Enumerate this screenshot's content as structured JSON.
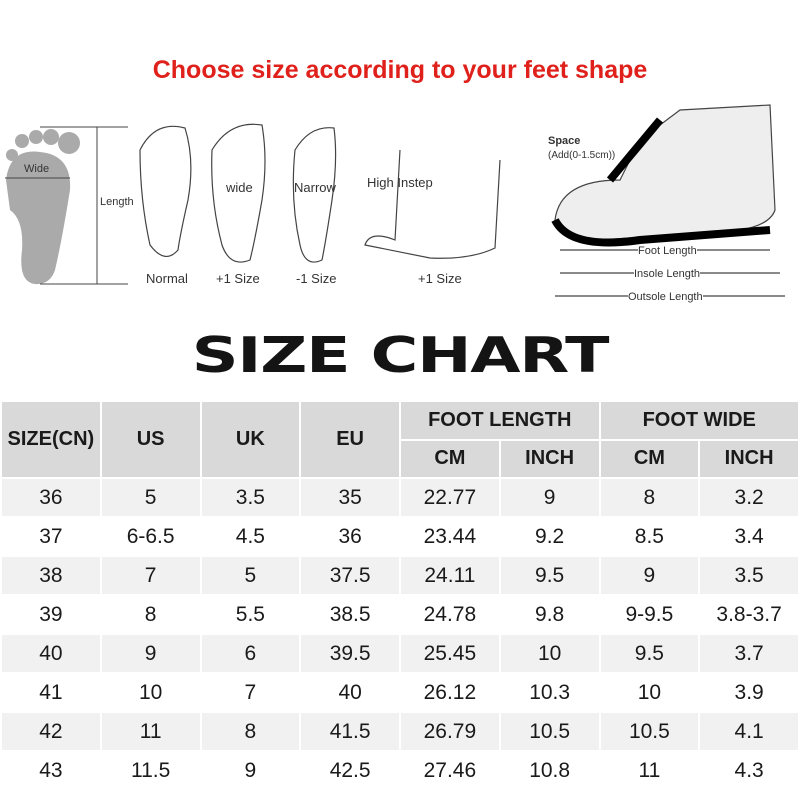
{
  "title": "Choose size according to your feet shape",
  "illustration": {
    "foot_labels": {
      "wide": "Wide",
      "length": "Length"
    },
    "types": [
      {
        "label": "Normal"
      },
      {
        "label": "+1 Size",
        "note": "wide"
      },
      {
        "label": "-1 Size",
        "note": "Narrow"
      },
      {
        "label": "+1 Size",
        "note": "High Instep"
      }
    ],
    "shoe": {
      "space": "Space",
      "space_note": "(Add(0-1.5cm))",
      "foot_length": "Foot Length",
      "insole_length": "Insole Length",
      "outsole_length": "Outsole Length"
    }
  },
  "banner": "SIZE CHART",
  "table": {
    "headers": {
      "size_cn": "SIZE(CN)",
      "us": "US",
      "uk": "UK",
      "eu": "EU",
      "foot_length": "FOOT LENGTH",
      "foot_wide": "FOOT WIDE",
      "cm": "CM",
      "inch": "INCH"
    },
    "rows": [
      [
        "36",
        "5",
        "3.5",
        "35",
        "22.77",
        "9",
        "8",
        "3.2"
      ],
      [
        "37",
        "6-6.5",
        "4.5",
        "36",
        "23.44",
        "9.2",
        "8.5",
        "3.4"
      ],
      [
        "38",
        "7",
        "5",
        "37.5",
        "24.11",
        "9.5",
        "9",
        "3.5"
      ],
      [
        "39",
        "8",
        "5.5",
        "38.5",
        "24.78",
        "9.8",
        "9-9.5",
        "3.8-3.7"
      ],
      [
        "40",
        "9",
        "6",
        "39.5",
        "25.45",
        "10",
        "9.5",
        "3.7"
      ],
      [
        "41",
        "10",
        "7",
        "40",
        "26.12",
        "10.3",
        "10",
        "3.9"
      ],
      [
        "42",
        "11",
        "8",
        "41.5",
        "26.79",
        "10.5",
        "10.5",
        "4.1"
      ],
      [
        "43",
        "11.5",
        "9",
        "42.5",
        "27.46",
        "10.8",
        "11",
        "4.3"
      ]
    ]
  }
}
